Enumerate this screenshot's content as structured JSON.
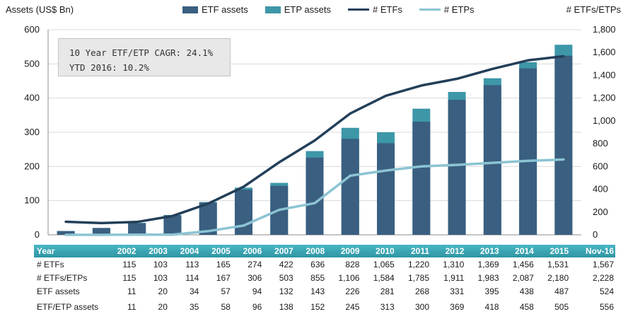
{
  "chart_data": {
    "type": "bar",
    "title": "",
    "ylabel_left": "Assets (US$ Bn)",
    "ylabel_right": "# ETFs/ETPs",
    "categories": [
      "2002",
      "2003",
      "2004",
      "2005",
      "2006",
      "2007",
      "2008",
      "2009",
      "2010",
      "2011",
      "2012",
      "2013",
      "2014",
      "2015",
      "Nov-16"
    ],
    "left_ylim": [
      0,
      600
    ],
    "left_ticks": [
      "0",
      "100",
      "200",
      "300",
      "400",
      "500",
      "600"
    ],
    "right_ylim": [
      0,
      1800
    ],
    "right_ticks": [
      "0",
      "200",
      "400",
      "600",
      "800",
      "1,000",
      "1,200",
      "1,400",
      "1,600",
      "1,800"
    ],
    "legend_position": "top-center",
    "grid": true,
    "series": [
      {
        "name": "ETF assets",
        "kind": "bar",
        "axis": "left",
        "color": "#3a5f80",
        "values": [
          11,
          20,
          34,
          57,
          94,
          132,
          143,
          226,
          281,
          268,
          331,
          395,
          438,
          487,
          524
        ]
      },
      {
        "name": "ETP assets",
        "kind": "bar",
        "axis": "left",
        "color": "#3d97a8",
        "values": [
          11,
          20,
          35,
          58,
          96,
          138,
          152,
          245,
          313,
          300,
          369,
          418,
          458,
          505,
          556
        ]
      },
      {
        "name": "# ETFs",
        "kind": "line",
        "axis": "right",
        "color": "#233f59",
        "values": [
          115,
          103,
          113,
          165,
          274,
          422,
          636,
          828,
          1065,
          1220,
          1310,
          1369,
          1456,
          1531,
          1567
        ]
      },
      {
        "name": "# ETPs",
        "kind": "line",
        "axis": "right",
        "color": "#8cc4d3",
        "values": [
          0,
          0,
          1,
          2,
          32,
          81,
          219,
          278,
          519,
          564,
          601,
          614,
          631,
          649,
          661
        ]
      }
    ]
  },
  "note": {
    "line1": "10 Year ETF/ETP CAGR: 24.1%",
    "line2": "YTD 2016: 10.2%"
  },
  "table": {
    "header": [
      "Year",
      "2002",
      "2003",
      "2004",
      "2005",
      "2006",
      "2007",
      "2008",
      "2009",
      "2010",
      "2011",
      "2012",
      "2013",
      "2014",
      "2015",
      "Nov-16"
    ],
    "rows": [
      {
        "label": "# ETFs",
        "values": [
          "115",
          "103",
          "113",
          "165",
          "274",
          "422",
          "636",
          "828",
          "1,065",
          "1,220",
          "1,310",
          "1,369",
          "1,456",
          "1,531",
          "1,567"
        ]
      },
      {
        "label": "# ETFs/ETPs",
        "values": [
          "115",
          "103",
          "114",
          "167",
          "306",
          "503",
          "855",
          "1,106",
          "1,584",
          "1,785",
          "1,911",
          "1,983",
          "2,087",
          "2,180",
          "2,228"
        ]
      },
      {
        "label": "ETF assets",
        "values": [
          "11",
          "20",
          "34",
          "57",
          "94",
          "132",
          "143",
          "226",
          "281",
          "268",
          "331",
          "395",
          "438",
          "487",
          "524"
        ]
      },
      {
        "label": "ETF/ETP assets",
        "values": [
          "11",
          "20",
          "35",
          "58",
          "96",
          "138",
          "152",
          "245",
          "313",
          "300",
          "369",
          "418",
          "458",
          "505",
          "556"
        ]
      }
    ]
  }
}
